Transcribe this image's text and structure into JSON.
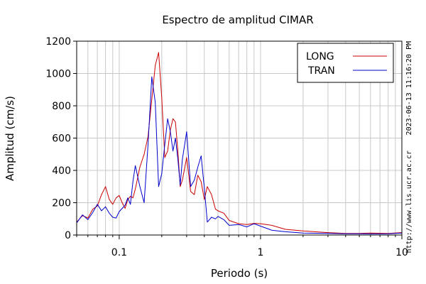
{
  "chart_data": {
    "type": "line",
    "title": "Espectro de amplitud CIMAR",
    "xlabel": "Periodo (s)",
    "ylabel": "Amplitud (cm/s)",
    "xscale": "log",
    "xlim": [
      0.05,
      10
    ],
    "ylim": [
      0,
      1200
    ],
    "xticks": [
      {
        "value": 0.1,
        "label": "0.1"
      },
      {
        "value": 1,
        "label": "1"
      },
      {
        "value": 10,
        "label": "10"
      }
    ],
    "yticks": [
      {
        "value": 0,
        "label": "0"
      },
      {
        "value": 200,
        "label": "200"
      },
      {
        "value": 400,
        "label": "400"
      },
      {
        "value": 600,
        "label": "600"
      },
      {
        "value": 800,
        "label": "800"
      },
      {
        "value": 1000,
        "label": "1000"
      },
      {
        "value": 1200,
        "label": "1200"
      }
    ],
    "grid": true,
    "legend_position": "top-right",
    "series": [
      {
        "name": "LONG",
        "color": "#cc0000",
        "x": [
          0.05,
          0.055,
          0.06,
          0.065,
          0.07,
          0.075,
          0.08,
          0.085,
          0.09,
          0.095,
          0.1,
          0.105,
          0.11,
          0.115,
          0.12,
          0.125,
          0.13,
          0.14,
          0.15,
          0.16,
          0.17,
          0.18,
          0.19,
          0.2,
          0.21,
          0.22,
          0.23,
          0.24,
          0.25,
          0.26,
          0.27,
          0.28,
          0.3,
          0.32,
          0.34,
          0.36,
          0.38,
          0.4,
          0.42,
          0.45,
          0.48,
          0.5,
          0.55,
          0.6,
          0.7,
          0.8,
          0.9,
          1.0,
          1.2,
          1.5,
          2,
          3,
          4,
          5,
          6,
          8,
          10
        ],
        "y": [
          80,
          120,
          105,
          160,
          180,
          250,
          300,
          220,
          190,
          230,
          245,
          200,
          165,
          220,
          240,
          230,
          285,
          420,
          500,
          610,
          840,
          1050,
          1130,
          850,
          480,
          520,
          650,
          720,
          700,
          520,
          300,
          340,
          480,
          270,
          250,
          370,
          330,
          220,
          300,
          250,
          160,
          150,
          135,
          90,
          70,
          65,
          72,
          70,
          60,
          35,
          25,
          15,
          10,
          10,
          12,
          10,
          15
        ]
      },
      {
        "name": "TRAN",
        "color": "#0000cc",
        "x": [
          0.05,
          0.055,
          0.06,
          0.065,
          0.07,
          0.075,
          0.08,
          0.085,
          0.09,
          0.095,
          0.1,
          0.105,
          0.11,
          0.115,
          0.12,
          0.125,
          0.13,
          0.14,
          0.15,
          0.16,
          0.17,
          0.18,
          0.19,
          0.2,
          0.21,
          0.22,
          0.23,
          0.24,
          0.25,
          0.26,
          0.27,
          0.28,
          0.3,
          0.32,
          0.34,
          0.36,
          0.38,
          0.4,
          0.42,
          0.45,
          0.48,
          0.5,
          0.55,
          0.6,
          0.7,
          0.8,
          0.9,
          1.0,
          1.2,
          1.5,
          2,
          3,
          4,
          5,
          6,
          8,
          10
        ],
        "y": [
          75,
          125,
          95,
          140,
          190,
          150,
          175,
          135,
          110,
          105,
          145,
          165,
          185,
          230,
          190,
          330,
          430,
          300,
          200,
          560,
          980,
          820,
          300,
          380,
          560,
          720,
          640,
          520,
          600,
          470,
          310,
          470,
          640,
          300,
          340,
          420,
          490,
          290,
          80,
          110,
          100,
          115,
          95,
          60,
          65,
          50,
          70,
          55,
          30,
          20,
          12,
          10,
          8,
          8,
          7,
          8,
          12
        ]
      }
    ]
  },
  "side_text": {
    "timestamp": "2023-06-13 11:16:20 PM",
    "url": "http://www.lis.ucr.ac.cr"
  }
}
